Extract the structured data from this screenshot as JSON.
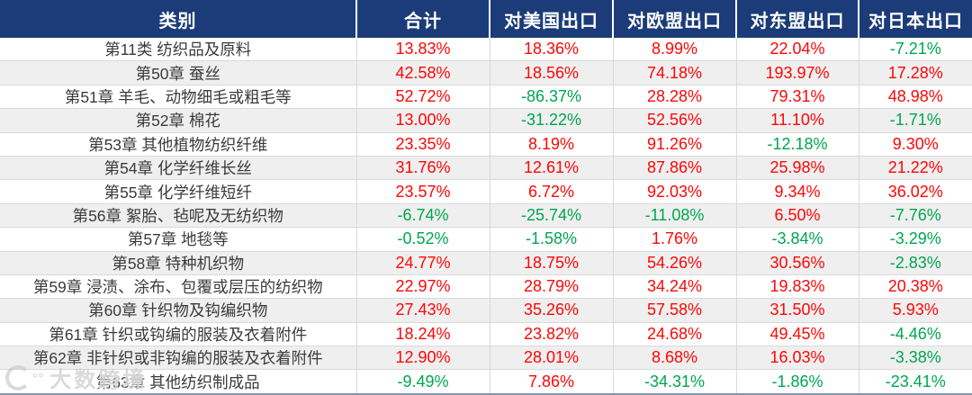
{
  "colors": {
    "header_bg": "#1B3C78",
    "header_text": "#FFFFFF",
    "positive_value": "#FE0606",
    "negative_value": "#00A650",
    "stripe_row": "#EFEFEF",
    "grid_line": "#D9D9D9",
    "bottom_rule": "#8496B0"
  },
  "watermark": {
    "logo": "ring-logo-icon",
    "text": "大数跨境"
  },
  "chart_data": {
    "type": "table",
    "title": "",
    "columns": [
      "类别",
      "合计",
      "对美国出口",
      "对欧盟出口",
      "对东盟出口",
      "对日本出口"
    ],
    "rows": [
      {
        "category": "第11类 纺织品及原料",
        "values": [
          "13.83%",
          "18.36%",
          "8.99%",
          "22.04%",
          "-7.21%"
        ]
      },
      {
        "category": "第50章 蚕丝",
        "values": [
          "42.58%",
          "18.56%",
          "74.18%",
          "193.97%",
          "17.28%"
        ]
      },
      {
        "category": "第51章 羊毛、动物细毛或粗毛等",
        "values": [
          "52.72%",
          "-86.37%",
          "28.28%",
          "79.31%",
          "48.98%"
        ]
      },
      {
        "category": "第52章 棉花",
        "values": [
          "13.00%",
          "-31.22%",
          "52.56%",
          "11.10%",
          "-1.71%"
        ]
      },
      {
        "category": "第53章 其他植物纺织纤维",
        "values": [
          "23.35%",
          "8.19%",
          "91.26%",
          "-12.18%",
          "9.30%"
        ]
      },
      {
        "category": "第54章 化学纤维长丝",
        "values": [
          "31.76%",
          "12.61%",
          "87.86%",
          "25.98%",
          "21.22%"
        ]
      },
      {
        "category": "第55章 化学纤维短纤",
        "values": [
          "23.57%",
          "6.72%",
          "92.03%",
          "9.34%",
          "36.02%"
        ]
      },
      {
        "category": "第56章 絮胎、毡呢及无纺织物",
        "values": [
          "-6.74%",
          "-25.74%",
          "-11.08%",
          "6.50%",
          "-7.76%"
        ]
      },
      {
        "category": "第57章 地毯等",
        "values": [
          "-0.52%",
          "-1.58%",
          "1.76%",
          "-3.84%",
          "-3.29%"
        ]
      },
      {
        "category": "第58章 特种机织物",
        "values": [
          "24.77%",
          "18.75%",
          "54.26%",
          "30.56%",
          "-2.83%"
        ]
      },
      {
        "category": "第59章 浸渍、涂布、包覆或层压的纺织物",
        "values": [
          "22.97%",
          "28.79%",
          "34.24%",
          "19.83%",
          "20.38%"
        ]
      },
      {
        "category": "第60章 针织物及钩编织物",
        "values": [
          "27.43%",
          "35.26%",
          "57.58%",
          "31.50%",
          "5.93%"
        ]
      },
      {
        "category": "第61章 针织或钩编的服装及衣着附件",
        "values": [
          "18.24%",
          "23.82%",
          "24.68%",
          "49.45%",
          "-4.46%"
        ]
      },
      {
        "category": "第62章 非针织或非钩编的服装及衣着附件",
        "values": [
          "12.90%",
          "28.01%",
          "8.68%",
          "16.03%",
          "-3.38%"
        ]
      },
      {
        "category": "第63章 其他纺织制成品",
        "values": [
          "-9.49%",
          "7.86%",
          "-34.31%",
          "-1.86%",
          "-23.41%"
        ]
      }
    ],
    "value_color_rule": "negative values green, non-negative values red",
    "layout": {
      "striped_rows": true,
      "header_style": "dark-navy",
      "grid": true
    }
  }
}
